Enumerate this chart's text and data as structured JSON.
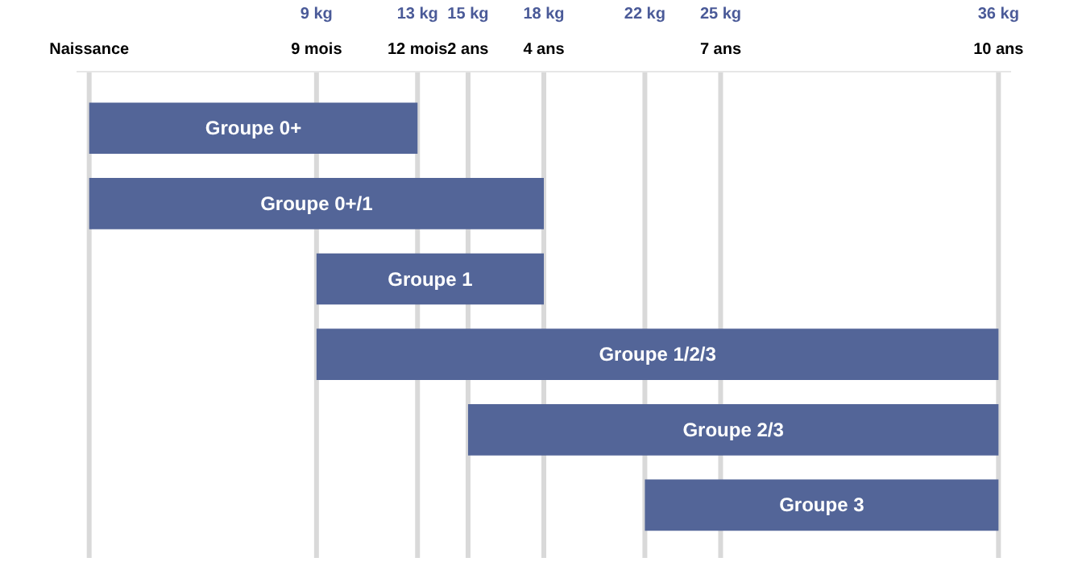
{
  "chart_data": {
    "type": "bar",
    "orientation": "horizontal",
    "categories": [
      "Groupe 0+",
      "Groupe 0+/1",
      "Groupe 1",
      "Groupe 1/2/3",
      "Groupe 2/3",
      "Groupe 3"
    ],
    "base": [
      0,
      0,
      9,
      9,
      15,
      22
    ],
    "values": [
      13,
      18,
      9,
      27,
      21,
      14
    ],
    "color": "#536598",
    "xlim": [
      -0.5,
      36.5
    ],
    "xticks": [
      {
        "value": 9,
        "label": "9 kg"
      },
      {
        "value": 13,
        "label": "13 kg"
      },
      {
        "value": 15,
        "label": "15 kg"
      },
      {
        "value": 18,
        "label": "18 kg"
      },
      {
        "value": 22,
        "label": "22 kg"
      },
      {
        "value": 25,
        "label": "25 kg"
      },
      {
        "value": 36,
        "label": "36 kg"
      }
    ],
    "ref_lines": [
      {
        "axis": "x",
        "value": 0,
        "label": "Naissance",
        "color": "#d9d9d9"
      },
      {
        "axis": "x",
        "value": 9,
        "label": "9 mois",
        "color": "#d9d9d9"
      },
      {
        "axis": "x",
        "value": 13,
        "label": "12 mois",
        "color": "#d9d9d9"
      },
      {
        "axis": "x",
        "value": 15,
        "label": "2 ans",
        "color": "#d9d9d9"
      },
      {
        "axis": "x",
        "value": 18,
        "label": "4 ans",
        "color": "#d9d9d9"
      },
      {
        "axis": "x",
        "value": 22,
        "label": null,
        "color": "#d9d9d9"
      },
      {
        "axis": "x",
        "value": 25,
        "label": "7 ans",
        "color": "#d9d9d9"
      },
      {
        "axis": "x",
        "value": 36,
        "label": "10 ans",
        "color": "#d9d9d9"
      }
    ]
  }
}
